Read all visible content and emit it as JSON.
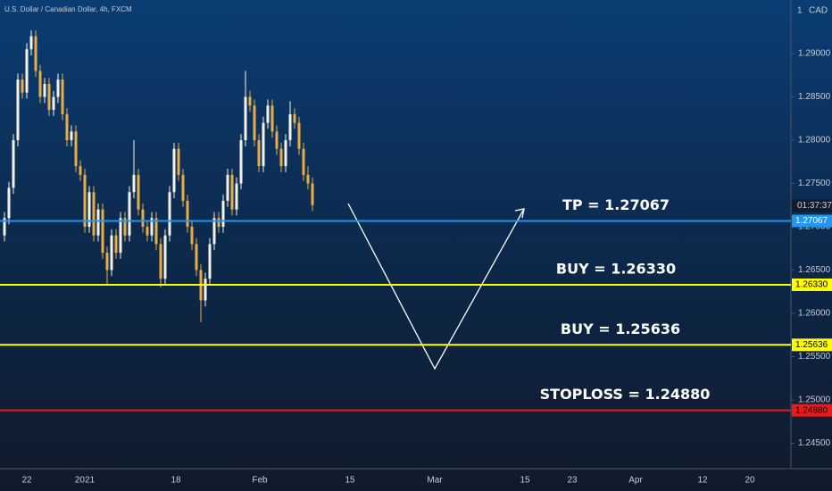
{
  "chart_data": {
    "type": "candlestick",
    "title": "U.S. Dollar / Canadian Dollar, 4h, FXCM",
    "currency": "CAD",
    "scale_mark": "1",
    "countdown": "01:37:37",
    "up_color": "#f4f1e8",
    "down_color": "#e9ad45",
    "ylim": [
      1.24206,
      1.29619
    ],
    "yticks": [
      {
        "value": 1.29,
        "label": "1.29000"
      },
      {
        "value": 1.285,
        "label": "1.28500"
      },
      {
        "value": 1.28,
        "label": "1.28000"
      },
      {
        "value": 1.275,
        "label": "1.27500"
      },
      {
        "value": 1.27,
        "label": "1.27000"
      },
      {
        "value": 1.265,
        "label": "1.26500"
      },
      {
        "value": 1.26,
        "label": "1.26000"
      },
      {
        "value": 1.255,
        "label": "1.25500"
      },
      {
        "value": 1.25,
        "label": "1.25000"
      },
      {
        "value": 1.245,
        "label": "1.24500"
      }
    ],
    "x_labels": [
      "22",
      "2021",
      "18",
      "Feb",
      "15",
      "Mar",
      "15",
      "23",
      "Apr",
      "12",
      "20"
    ],
    "open": [
      1.269,
      1.271,
      1.2745,
      1.28,
      1.287,
      1.2855,
      1.2905,
      1.292,
      1.288,
      1.285,
      1.2865,
      1.2835,
      1.285,
      1.287,
      1.283,
      1.28,
      1.281,
      1.277,
      1.276,
      1.27,
      1.274,
      1.269,
      1.272,
      1.267,
      1.265,
      1.269,
      1.267,
      1.271,
      1.269,
      1.274,
      1.276,
      1.272,
      1.27,
      1.269,
      1.271,
      1.268,
      1.264,
      1.269,
      1.274,
      1.279,
      1.276,
      1.273,
      1.27,
      1.268,
      1.265,
      1.2615,
      1.264,
      1.268,
      1.271,
      1.27,
      1.273,
      1.276,
      1.272,
      1.275,
      1.28,
      1.285,
      1.284,
      1.28,
      1.277,
      1.282,
      1.284,
      1.281,
      1.279,
      1.277,
      1.28,
      1.283,
      1.282,
      1.279,
      1.276,
      1.275
    ],
    "high": [
      1.2717,
      1.2752,
      1.2807,
      1.2877,
      1.2877,
      1.2912,
      1.2927,
      1.2927,
      1.2887,
      1.2872,
      1.2872,
      1.2857,
      1.2877,
      1.2877,
      1.2837,
      1.2817,
      1.2817,
      1.2777,
      1.2767,
      1.2747,
      1.2747,
      1.2727,
      1.2727,
      1.2677,
      1.2697,
      1.2697,
      1.2717,
      1.2717,
      1.2747,
      1.28,
      1.2767,
      1.2727,
      1.2707,
      1.2717,
      1.2717,
      1.2687,
      1.2697,
      1.2747,
      1.2797,
      1.2797,
      1.2767,
      1.2737,
      1.2707,
      1.2687,
      1.2657,
      1.2647,
      1.2687,
      1.2717,
      1.2717,
      1.2737,
      1.2767,
      1.2767,
      1.2757,
      1.2807,
      1.288,
      1.2857,
      1.2847,
      1.2807,
      1.2827,
      1.2847,
      1.2847,
      1.2817,
      1.2797,
      1.2807,
      1.2845,
      1.2837,
      1.2827,
      1.2797,
      1.277,
      1.2757
    ],
    "low": [
      1.2683,
      1.2703,
      1.2738,
      1.2793,
      1.2848,
      1.2848,
      1.2898,
      1.2873,
      1.2843,
      1.2843,
      1.2828,
      1.2828,
      1.2843,
      1.2823,
      1.2793,
      1.2793,
      1.2763,
      1.2753,
      1.2693,
      1.2693,
      1.2683,
      1.2683,
      1.2663,
      1.2633,
      1.2643,
      1.2663,
      1.2663,
      1.2683,
      1.2683,
      1.2733,
      1.2713,
      1.2693,
      1.2683,
      1.2683,
      1.2673,
      1.263,
      1.2633,
      1.2683,
      1.2733,
      1.2753,
      1.2723,
      1.2693,
      1.2673,
      1.2643,
      1.259,
      1.2608,
      1.2633,
      1.2673,
      1.2693,
      1.2693,
      1.2723,
      1.2713,
      1.2713,
      1.2743,
      1.2793,
      1.2833,
      1.2793,
      1.2763,
      1.2763,
      1.2813,
      1.2803,
      1.2783,
      1.2763,
      1.2763,
      1.2793,
      1.2813,
      1.2783,
      1.2753,
      1.2743,
      1.2718
    ],
    "close": [
      1.271,
      1.2745,
      1.28,
      1.287,
      1.2855,
      1.2905,
      1.292,
      1.288,
      1.285,
      1.2865,
      1.2835,
      1.285,
      1.287,
      1.283,
      1.28,
      1.281,
      1.277,
      1.276,
      1.27,
      1.274,
      1.269,
      1.272,
      1.267,
      1.265,
      1.269,
      1.267,
      1.271,
      1.269,
      1.274,
      1.276,
      1.272,
      1.27,
      1.269,
      1.271,
      1.268,
      1.264,
      1.269,
      1.274,
      1.279,
      1.276,
      1.273,
      1.27,
      1.268,
      1.265,
      1.2615,
      1.264,
      1.268,
      1.271,
      1.27,
      1.273,
      1.276,
      1.272,
      1.275,
      1.28,
      1.285,
      1.284,
      1.28,
      1.277,
      1.282,
      1.284,
      1.281,
      1.279,
      1.277,
      1.28,
      1.283,
      1.282,
      1.279,
      1.276,
      1.275,
      1.2725
    ],
    "levels": [
      {
        "value": 1.27067,
        "tag": "1.27067",
        "text": "TP = 1.27067",
        "color": "#2196f3"
      },
      {
        "value": 1.2633,
        "tag": "1.26330",
        "text": "BUY = 1.26330",
        "color": "#ffff00"
      },
      {
        "value": 1.25636,
        "tag": "1.25636",
        "text": "BUY = 1.25636",
        "color": "#ffff00"
      },
      {
        "value": 1.2488,
        "tag": "1.24880",
        "text": "STOPLOSS = 1.24880",
        "color": "#f01818"
      }
    ]
  }
}
